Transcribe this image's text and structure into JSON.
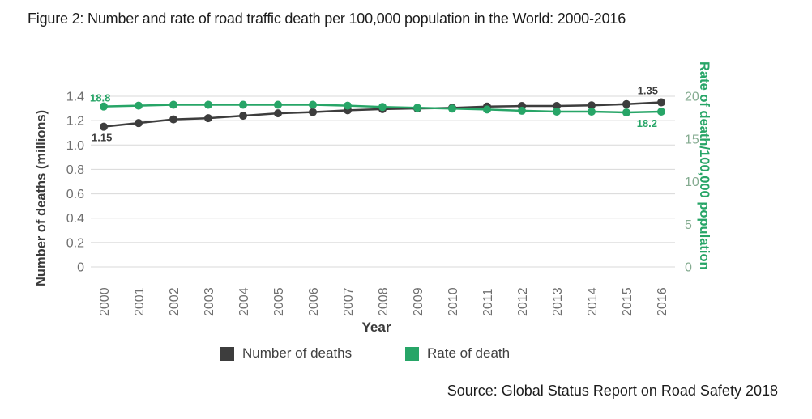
{
  "figure": {
    "title": "Figure 2: Number and rate of road traffic death per 100,000 population in the World: 2000-2016",
    "source": "Source: Global Status Report on Road Safety 2018"
  },
  "colors": {
    "deaths_series": "#3d3d3d",
    "rate_series": "#27a567",
    "gridline": "#d8d8d8",
    "left_ticks": "#6f6f6f",
    "right_ticks": "#84ab90",
    "right_axis_title": "#27a567"
  },
  "chart_data": {
    "type": "line",
    "title": "Figure 2: Number and rate of road traffic death per 100,000 population in the World: 2000-2016",
    "x": [
      2000,
      2001,
      2002,
      2003,
      2004,
      2005,
      2006,
      2007,
      2008,
      2009,
      2010,
      2011,
      2012,
      2013,
      2014,
      2015,
      2016
    ],
    "xlabel": "Year",
    "grid": true,
    "legend_position": "bottom",
    "series": [
      {
        "name": "Number of deaths",
        "axis": "left",
        "color": "#3d3d3d",
        "values": [
          1.15,
          1.18,
          1.21,
          1.22,
          1.24,
          1.26,
          1.27,
          1.285,
          1.295,
          1.3,
          1.305,
          1.315,
          1.32,
          1.32,
          1.325,
          1.335,
          1.35
        ]
      },
      {
        "name": "Rate of death",
        "axis": "right",
        "color": "#27a567",
        "values": [
          18.8,
          18.9,
          19.0,
          19.0,
          19.0,
          19.0,
          19.0,
          18.9,
          18.75,
          18.65,
          18.55,
          18.45,
          18.3,
          18.2,
          18.2,
          18.1,
          18.2
        ]
      }
    ],
    "left_axis": {
      "label": "Number of deaths (millions)",
      "range": [
        0,
        1.4
      ],
      "tick_labels": [
        "0",
        "0.2",
        "0.4",
        "0.6",
        "0.8",
        "1.0",
        "1.2",
        "1.4"
      ]
    },
    "right_axis": {
      "label": "Rate of death/100,000 population",
      "range": [
        0,
        20
      ],
      "tick_labels": [
        "0",
        "5",
        "10",
        "15",
        "20"
      ]
    },
    "annotations": [
      {
        "text": "18.8",
        "year": 2000,
        "series": 1
      },
      {
        "text": "1.15",
        "year": 2000,
        "series": 0
      },
      {
        "text": "1.35",
        "year": 2016,
        "series": 0
      },
      {
        "text": "18.2",
        "year": 2016,
        "series": 1
      }
    ]
  }
}
